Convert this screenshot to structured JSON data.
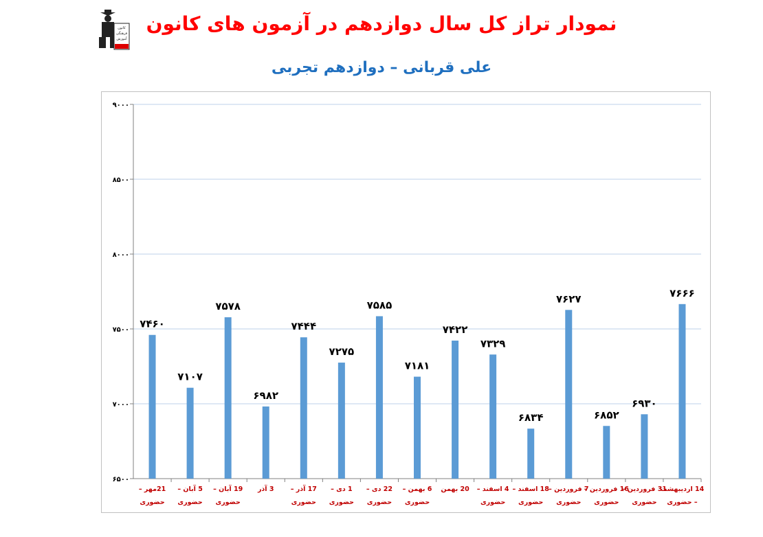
{
  "header": {
    "title": "نمودار تراز کل سال دوازدهم در آزمون های کانون",
    "subtitle": "علی قربانی – دوازدهم تجربی",
    "logo_text": "کانون فرهنگی آموزش"
  },
  "colors": {
    "title": "#ff0000",
    "subtitle": "#1f6fbf",
    "bar": "#5b9bd5",
    "grid": "#bcd2ea",
    "category_label": "#c00000",
    "value_label": "#000000"
  },
  "chart_data": {
    "type": "bar",
    "ylim": [
      6500,
      9000
    ],
    "yticks": [
      6500,
      7000,
      7500,
      8000,
      8500,
      9000
    ],
    "ytick_labels": [
      "۶۵۰۰",
      "۷۰۰۰",
      "۷۵۰۰",
      "۸۰۰۰",
      "۸۵۰۰",
      "۹۰۰۰"
    ],
    "grid": true,
    "categories": [
      [
        "21مهر –",
        "حضوری"
      ],
      [
        "5 آبان –",
        "حضوری"
      ],
      [
        "19 آبان –",
        "حضوری"
      ],
      [
        "3 آذر",
        ""
      ],
      [
        "17 آذر –",
        "حضوری"
      ],
      [
        "1 دی –",
        "حضوری"
      ],
      [
        "22 دی –",
        "حضوری"
      ],
      [
        "6 بهمن –",
        "حضوری"
      ],
      [
        "20 بهمن",
        ""
      ],
      [
        "4 اسفند –",
        "حضوری"
      ],
      [
        "18 اسفند –",
        "حضوری"
      ],
      [
        "7 فروردین –",
        "حضوری"
      ],
      [
        "16 فروردین –",
        "حضوری"
      ],
      [
        "31 فروردین –",
        "حضوری"
      ],
      [
        "14 اردیبهشت",
        "– حضوری"
      ]
    ],
    "values": [
      7460,
      7107,
      7578,
      6982,
      7444,
      7275,
      7585,
      7181,
      7422,
      7329,
      6834,
      7627,
      6852,
      6930,
      7666
    ],
    "value_labels": [
      "۷۴۶۰",
      "۷۱۰۷",
      "۷۵۷۸",
      "۶۹۸۲",
      "۷۴۴۴",
      "۷۲۷۵",
      "۷۵۸۵",
      "۷۱۸۱",
      "۷۴۲۲",
      "۷۳۲۹",
      "۶۸۳۴",
      "۷۶۲۷",
      "۶۸۵۲",
      "۶۹۳۰",
      "۷۶۶۶"
    ]
  }
}
